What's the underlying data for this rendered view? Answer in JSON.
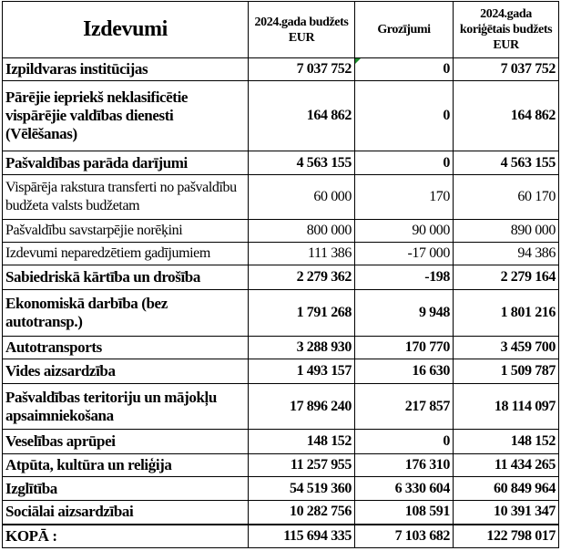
{
  "header": {
    "col1": "Izdevumi",
    "col2": "2024.gada budžets EUR",
    "col3": "Grozījumi",
    "col4": "2024.gada koriģētais budžets EUR"
  },
  "rows": [
    {
      "label": "Izpildvaras institūcijas",
      "budget": "7 037 752",
      "change": "0",
      "corrected": "7 037 752",
      "bold": true,
      "h": 25,
      "flag": true
    },
    {
      "label": "Pārējie iepriekš neklasificētie vispārējie valdības dienesti (Vēlēšanas)",
      "budget": "164 862",
      "change": "0",
      "corrected": "164 862",
      "bold": true,
      "h": 77
    },
    {
      "label": "Pašvaldības parāda darījumi",
      "budget": "4 563 155",
      "change": "0",
      "corrected": "4 563 155",
      "bold": true,
      "h": 26
    },
    {
      "label": "Vispārēja rakstura transferti no pašvaldību budžeta valsts budžetam",
      "budget": "60 000",
      "change": "170",
      "corrected": "60 170",
      "bold": false,
      "h": 49
    },
    {
      "label": "Pašvaldību savstarpējie norēķini",
      "budget": "800 000",
      "change": "90 000",
      "corrected": "890 000",
      "bold": false,
      "h": 25
    },
    {
      "label": "Izdevumi neparedzētiem gadījumiem",
      "budget": "111 386",
      "change": "-17 000",
      "corrected": "94 386",
      "bold": false,
      "h": 25
    },
    {
      "label": "Sabiedriskā kārtība un drošība",
      "budget": "2 279 362",
      "change": "-198",
      "corrected": "2 279 164",
      "bold": true,
      "h": 27
    },
    {
      "label": "Ekonomiskā darbība (bez autotransp.)",
      "budget": "1 791 268",
      "change": "9 948",
      "corrected": "1 801 216",
      "bold": true,
      "h": 51
    },
    {
      "label": "Autotransports",
      "budget": "3 288 930",
      "change": "170 770",
      "corrected": "3 459 700",
      "bold": true,
      "h": 25
    },
    {
      "label": "Vides aizsardzība",
      "budget": "1 493 157",
      "change": "16 630",
      "corrected": "1 509 787",
      "bold": true,
      "h": 27
    },
    {
      "label": "Pašvaldības teritoriju un mājokļu apsaimniekošana",
      "budget": "17 896 240",
      "change": "217 857",
      "corrected": "18 114 097",
      "bold": true,
      "h": 50
    },
    {
      "label": "Veselības aprūpei",
      "budget": "148 152",
      "change": "0",
      "corrected": "148 152",
      "bold": true,
      "h": 27
    },
    {
      "label": "Atpūta, kultūra un reliģija",
      "budget": "11 257 955",
      "change": "176 310",
      "corrected": "11 434 265",
      "bold": true,
      "h": 25
    },
    {
      "label": "Izglītība",
      "budget": "54 519 360",
      "change": "6 330 604",
      "corrected": "60 849 964",
      "bold": true,
      "h": 26
    },
    {
      "label": "Sociālai aizsardzībai",
      "budget": "10 282 756",
      "change": "108 591",
      "corrected": "10 391 347",
      "bold": true,
      "h": 26
    },
    {
      "label": "KOPĀ :",
      "budget": "115 694 335",
      "change": "7 103 682",
      "corrected": "122 798 017",
      "bold": true,
      "h": 26,
      "total": true
    }
  ],
  "colors": {
    "border": "#000000",
    "error_indicator": "#1a8a2a"
  }
}
